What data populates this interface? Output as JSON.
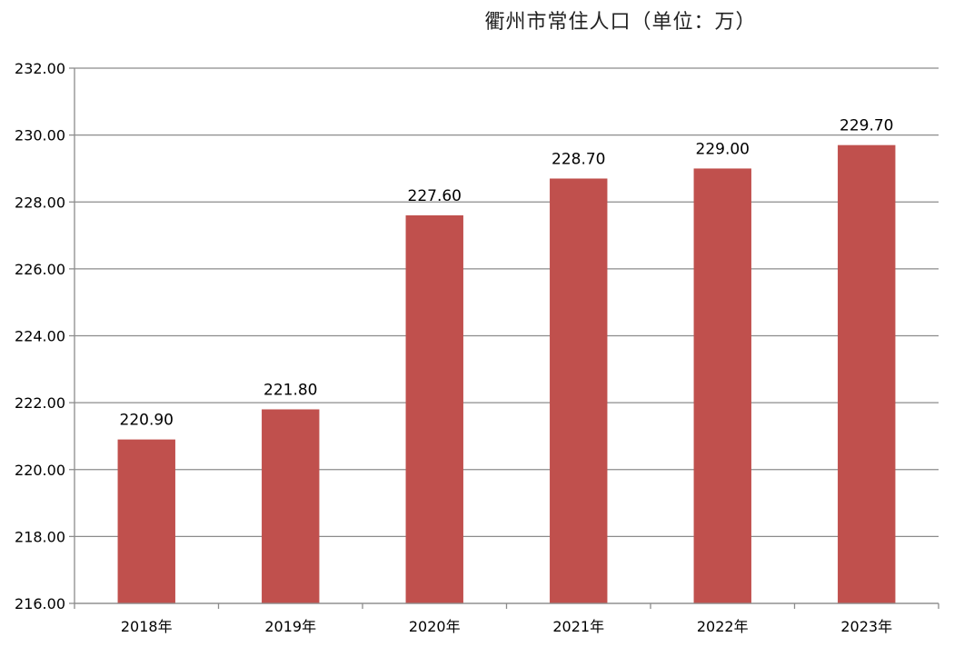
{
  "chart_data": {
    "type": "bar",
    "title": "衢州市常住人口（单位：万）",
    "categories": [
      "2018年",
      "2019年",
      "2020年",
      "2021年",
      "2022年",
      "2023年"
    ],
    "values": [
      220.9,
      221.8,
      227.6,
      228.7,
      229.0,
      229.7
    ],
    "value_labels": [
      "220.90",
      "221.80",
      "227.60",
      "228.70",
      "229.00",
      "229.70"
    ],
    "ylim": [
      216,
      232
    ],
    "yticks": [
      216,
      218,
      220,
      222,
      224,
      226,
      228,
      230,
      232
    ],
    "ytick_labels": [
      "216.00",
      "218.00",
      "220.00",
      "222.00",
      "224.00",
      "226.00",
      "228.00",
      "230.00",
      "232.00"
    ],
    "bar_color": "#C0504D",
    "grid": true,
    "legend": "none"
  }
}
